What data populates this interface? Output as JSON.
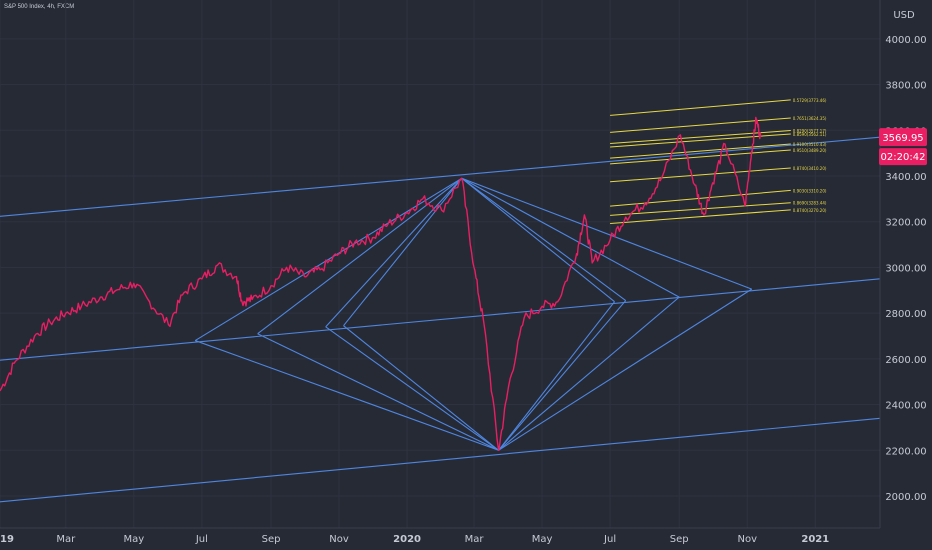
{
  "header": {
    "title": "S&P 500 Index, 4h, FXCM"
  },
  "chart_data": {
    "type": "line",
    "title": "S&P 500 Index, 4h, FXCM",
    "currency": "USD",
    "ylim": [
      1860,
      4170
    ],
    "y_ticks": [
      2000,
      2200,
      2400,
      2600,
      2800,
      3000,
      3200,
      3400,
      3600,
      3800,
      4000
    ],
    "y_tick_labels": [
      "2000.00",
      "2200.00",
      "2400.00",
      "2600.00",
      "2800.00",
      "3000.00",
      "3200.00",
      "3400.00",
      "3600.00",
      "3800.00",
      "4000.00"
    ],
    "xlim": [
      "2019-01-01",
      "2021-02-28"
    ],
    "x_ticks": [
      {
        "date": "2019-01-01",
        "label": "2019"
      },
      {
        "date": "2019-03-01",
        "label": "Mar"
      },
      {
        "date": "2019-05-01",
        "label": "May"
      },
      {
        "date": "2019-07-01",
        "label": "Jul"
      },
      {
        "date": "2019-09-01",
        "label": "Sep"
      },
      {
        "date": "2019-11-01",
        "label": "Nov"
      },
      {
        "date": "2020-01-01",
        "label": "2020"
      },
      {
        "date": "2020-03-01",
        "label": "Mar"
      },
      {
        "date": "2020-05-01",
        "label": "May"
      },
      {
        "date": "2020-07-01",
        "label": "Jul"
      },
      {
        "date": "2020-09-01",
        "label": "Sep"
      },
      {
        "date": "2020-11-01",
        "label": "Nov"
      },
      {
        "date": "2021-01-01",
        "label": "2021"
      }
    ],
    "series": [
      {
        "color": "#e91e63",
        "points": [
          [
            "2019-01-01",
            2460
          ],
          [
            "2019-01-15",
            2590
          ],
          [
            "2019-02-01",
            2700
          ],
          [
            "2019-02-15",
            2760
          ],
          [
            "2019-03-01",
            2800
          ],
          [
            "2019-03-15",
            2830
          ],
          [
            "2019-04-01",
            2870
          ],
          [
            "2019-04-15",
            2900
          ],
          [
            "2019-05-01",
            2930
          ],
          [
            "2019-05-15",
            2850
          ],
          [
            "2019-06-01",
            2750
          ],
          [
            "2019-06-15",
            2890
          ],
          [
            "2019-07-01",
            2950
          ],
          [
            "2019-07-15",
            3010
          ],
          [
            "2019-08-01",
            2960
          ],
          [
            "2019-08-06",
            2850
          ],
          [
            "2019-08-15",
            2860
          ],
          [
            "2019-09-01",
            2920
          ],
          [
            "2019-09-15",
            3000
          ],
          [
            "2019-10-01",
            2960
          ],
          [
            "2019-10-15",
            2990
          ],
          [
            "2019-11-01",
            3060
          ],
          [
            "2019-11-15",
            3110
          ],
          [
            "2019-12-01",
            3130
          ],
          [
            "2019-12-15",
            3190
          ],
          [
            "2020-01-01",
            3240
          ],
          [
            "2020-01-15",
            3300
          ],
          [
            "2020-02-01",
            3250
          ],
          [
            "2020-02-19",
            3390
          ],
          [
            "2020-03-01",
            3000
          ],
          [
            "2020-03-10",
            2750
          ],
          [
            "2020-03-23",
            2200
          ],
          [
            "2020-04-01",
            2480
          ],
          [
            "2020-04-15",
            2780
          ],
          [
            "2020-05-01",
            2830
          ],
          [
            "2020-05-15",
            2850
          ],
          [
            "2020-06-01",
            3060
          ],
          [
            "2020-06-08",
            3230
          ],
          [
            "2020-06-15",
            3020
          ],
          [
            "2020-07-01",
            3120
          ],
          [
            "2020-07-15",
            3220
          ],
          [
            "2020-08-01",
            3280
          ],
          [
            "2020-08-15",
            3380
          ],
          [
            "2020-09-02",
            3580
          ],
          [
            "2020-09-15",
            3360
          ],
          [
            "2020-09-23",
            3230
          ],
          [
            "2020-10-01",
            3370
          ],
          [
            "2020-10-12",
            3540
          ],
          [
            "2020-10-30",
            3270
          ],
          [
            "2020-11-05",
            3510
          ],
          [
            "2020-11-09",
            3650
          ],
          [
            "2020-11-13",
            3570
          ]
        ]
      }
    ],
    "price_label": {
      "value": 3569.95,
      "text": "3569.95",
      "countdown": "02:20:42"
    },
    "trendlines": [
      {
        "from": [
          "2018-12-01",
          2580
        ],
        "to": [
          "2021-02-28",
          2950
        ]
      },
      {
        "from": [
          "2018-12-01",
          1960
        ],
        "to": [
          "2021-02-28",
          2340
        ]
      },
      {
        "from": [
          "2018-12-01",
          3210
        ],
        "to": [
          "2021-02-28",
          3570
        ]
      },
      {
        "from": [
          "2019-06-25",
          2680
        ],
        "to": [
          "2020-02-19",
          3390
        ]
      },
      {
        "from": [
          "2019-06-25",
          2680
        ],
        "to": [
          "2020-03-23",
          2200
        ]
      },
      {
        "from": [
          "2019-08-20",
          2710
        ],
        "to": [
          "2020-02-19",
          3390
        ]
      },
      {
        "from": [
          "2019-08-20",
          2710
        ],
        "to": [
          "2020-03-23",
          2200
        ]
      },
      {
        "from": [
          "2019-10-20",
          2740
        ],
        "to": [
          "2020-02-19",
          3390
        ]
      },
      {
        "from": [
          "2019-10-20",
          2740
        ],
        "to": [
          "2020-03-23",
          2200
        ]
      },
      {
        "from": [
          "2019-11-05",
          2745
        ],
        "to": [
          "2020-02-19",
          3390
        ]
      },
      {
        "from": [
          "2019-11-05",
          2745
        ],
        "to": [
          "2020-03-23",
          2200
        ]
      },
      {
        "from": [
          "2020-02-19",
          3390
        ],
        "to": [
          "2020-07-05",
          2850
        ]
      },
      {
        "from": [
          "2020-03-23",
          2200
        ],
        "to": [
          "2020-07-05",
          2850
        ]
      },
      {
        "from": [
          "2020-02-19",
          3390
        ],
        "to": [
          "2020-07-15",
          2855
        ]
      },
      {
        "from": [
          "2020-03-23",
          2200
        ],
        "to": [
          "2020-07-15",
          2855
        ]
      },
      {
        "from": [
          "2020-02-19",
          3390
        ],
        "to": [
          "2020-09-01",
          2870
        ]
      },
      {
        "from": [
          "2020-03-23",
          2200
        ],
        "to": [
          "2020-09-01",
          2870
        ]
      },
      {
        "from": [
          "2020-02-19",
          3390
        ],
        "to": [
          "2020-11-05",
          2905
        ]
      },
      {
        "from": [
          "2020-03-23",
          2200
        ],
        "to": [
          "2020-11-05",
          2905
        ]
      }
    ],
    "fib_levels": [
      {
        "label": "0.5729(3773.46)",
        "start": 3665,
        "end": 3733
      },
      {
        "label": "0.7651(3624.35)",
        "start": 3591,
        "end": 3654
      },
      {
        "label": "0.8290(3577.17)",
        "start": 3542,
        "end": 3599
      },
      {
        "label": "0.8590(3562.11)",
        "start": 3527,
        "end": 3584
      },
      {
        "label": "0.9100(3510.43)",
        "start": 3478,
        "end": 3540
      },
      {
        "label": "0.9510(3489.20)",
        "start": 3453,
        "end": 3514
      },
      {
        "label": "0.8740(3410.20)",
        "start": 3375,
        "end": 3435
      },
      {
        "label": "0.9030(3310.20)",
        "start": 3268,
        "end": 3337
      },
      {
        "label": "0.8690(3283.44)",
        "start": 3228,
        "end": 3283
      },
      {
        "label": "0.8740(3270.20)",
        "start": 3192,
        "end": 3252
      }
    ]
  },
  "colors": {
    "background": "#262a35",
    "grid": "#2f3340",
    "price": "#e91e63",
    "trend": "#4f86e0",
    "fib": "#e8d845",
    "axis_text": "#c6cad4"
  }
}
